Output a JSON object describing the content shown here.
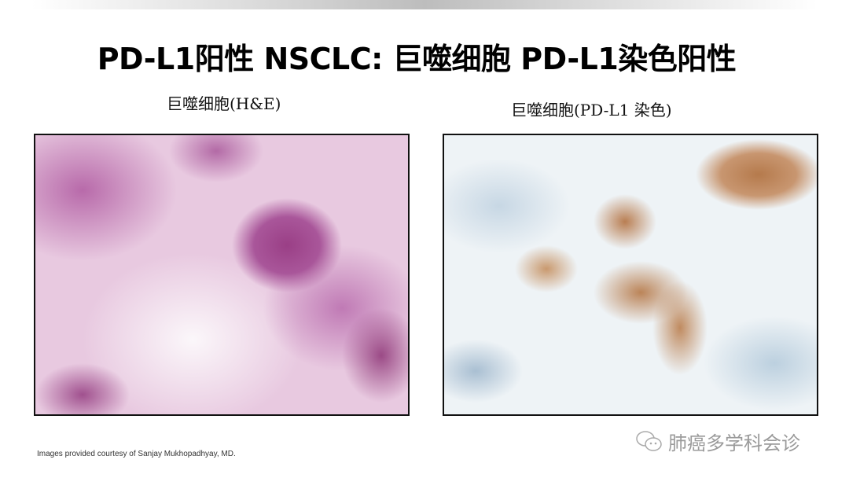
{
  "slide": {
    "title": "PD-L1阳性 NSCLC: 巨噬细胞 PD-L1染色阳性",
    "panels": [
      {
        "caption": "巨噬细胞(H&E)",
        "image": "lung-tissue-he-stain-micrograph"
      },
      {
        "caption": "巨噬细胞(PD-L1 染色)",
        "image": "lung-tissue-pd-l1-ihc-micrograph"
      }
    ],
    "credit": "Images provided courtesy of Sanjay Mukhopadhyay,  MD.",
    "watermark": {
      "icon": "wechat-icon",
      "text": "肺癌多学科会诊"
    }
  }
}
